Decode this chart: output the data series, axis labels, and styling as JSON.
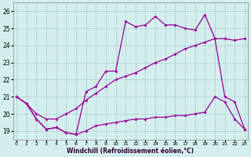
{
  "xlabel": "Windchill (Refroidissement éolien,°C)",
  "xlim": [
    -0.3,
    23.3
  ],
  "ylim": [
    18.5,
    26.5
  ],
  "yticks": [
    19,
    20,
    21,
    22,
    23,
    24,
    25,
    26
  ],
  "xticks": [
    0,
    1,
    2,
    3,
    4,
    5,
    6,
    7,
    8,
    9,
    10,
    11,
    12,
    13,
    14,
    15,
    16,
    17,
    18,
    19,
    20,
    21,
    22,
    23
  ],
  "line_color": "#990099",
  "bg_color": "#d4eeed",
  "grid_color": "#a8cece",
  "line1_y": [
    21.0,
    20.6,
    19.7,
    19.1,
    19.2,
    18.9,
    18.8,
    19.0,
    19.3,
    19.4,
    19.5,
    19.6,
    19.7,
    19.7,
    19.8,
    19.8,
    19.9,
    19.9,
    20.0,
    20.1,
    21.0,
    20.7,
    19.7,
    19.1
  ],
  "line2_y": [
    21.0,
    20.6,
    20.0,
    19.7,
    19.7,
    20.0,
    20.3,
    20.8,
    21.2,
    21.6,
    22.0,
    22.2,
    22.4,
    22.7,
    23.0,
    23.2,
    23.5,
    23.8,
    24.0,
    24.2,
    24.4,
    24.4,
    24.3,
    24.4
  ],
  "line3_y": [
    21.0,
    20.6,
    19.7,
    19.1,
    19.2,
    18.9,
    18.8,
    21.3,
    21.6,
    22.5,
    22.5,
    25.4,
    25.1,
    25.2,
    25.7,
    25.2,
    25.2,
    25.0,
    24.9,
    25.8,
    24.4,
    21.0,
    20.7,
    19.1
  ]
}
